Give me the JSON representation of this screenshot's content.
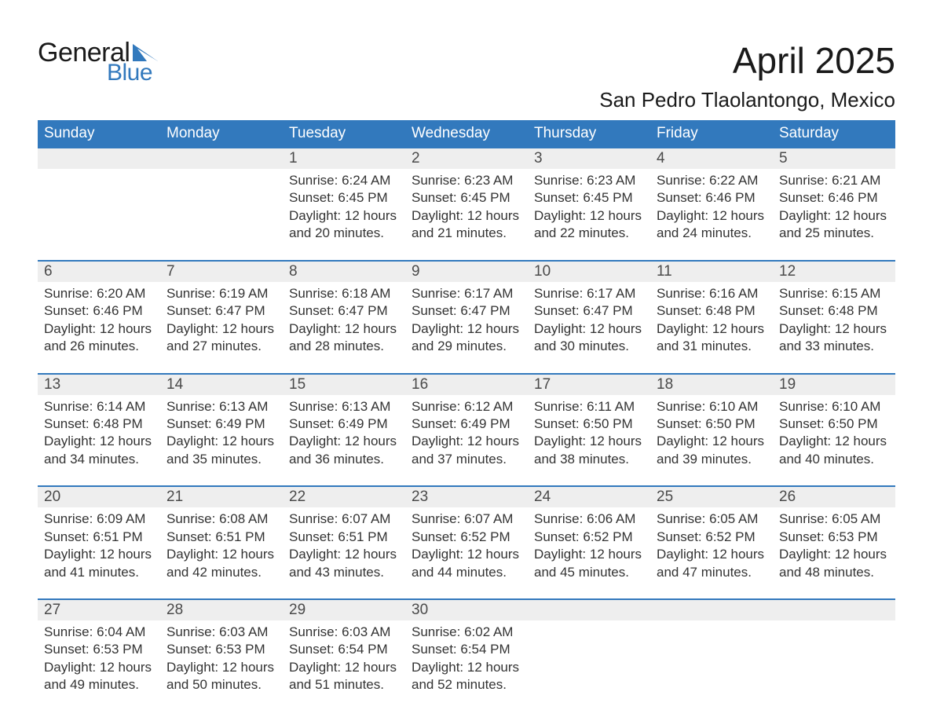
{
  "brand": {
    "general": "General",
    "blue": "Blue"
  },
  "title": "April 2025",
  "location": "San Pedro Tlaolantongo, Mexico",
  "colors": {
    "header_bg": "#3279bd",
    "header_text": "#ffffff",
    "daynum_bg": "#eeeeee",
    "daynum_border": "#3279bd",
    "body_text": "#333333",
    "logo_blue": "#3279bd",
    "page_bg": "#ffffff"
  },
  "fonts": {
    "title_size_pt": 34,
    "location_size_pt": 20,
    "header_size_pt": 14,
    "daynum_size_pt": 14,
    "body_size_pt": 13
  },
  "weekdays": [
    "Sunday",
    "Monday",
    "Tuesday",
    "Wednesday",
    "Thursday",
    "Friday",
    "Saturday"
  ],
  "weeks": [
    [
      null,
      null,
      {
        "n": "1",
        "sunrise": "Sunrise: 6:24 AM",
        "sunset": "Sunset: 6:45 PM",
        "day1": "Daylight: 12 hours",
        "day2": "and 20 minutes."
      },
      {
        "n": "2",
        "sunrise": "Sunrise: 6:23 AM",
        "sunset": "Sunset: 6:45 PM",
        "day1": "Daylight: 12 hours",
        "day2": "and 21 minutes."
      },
      {
        "n": "3",
        "sunrise": "Sunrise: 6:23 AM",
        "sunset": "Sunset: 6:45 PM",
        "day1": "Daylight: 12 hours",
        "day2": "and 22 minutes."
      },
      {
        "n": "4",
        "sunrise": "Sunrise: 6:22 AM",
        "sunset": "Sunset: 6:46 PM",
        "day1": "Daylight: 12 hours",
        "day2": "and 24 minutes."
      },
      {
        "n": "5",
        "sunrise": "Sunrise: 6:21 AM",
        "sunset": "Sunset: 6:46 PM",
        "day1": "Daylight: 12 hours",
        "day2": "and 25 minutes."
      }
    ],
    [
      {
        "n": "6",
        "sunrise": "Sunrise: 6:20 AM",
        "sunset": "Sunset: 6:46 PM",
        "day1": "Daylight: 12 hours",
        "day2": "and 26 minutes."
      },
      {
        "n": "7",
        "sunrise": "Sunrise: 6:19 AM",
        "sunset": "Sunset: 6:47 PM",
        "day1": "Daylight: 12 hours",
        "day2": "and 27 minutes."
      },
      {
        "n": "8",
        "sunrise": "Sunrise: 6:18 AM",
        "sunset": "Sunset: 6:47 PM",
        "day1": "Daylight: 12 hours",
        "day2": "and 28 minutes."
      },
      {
        "n": "9",
        "sunrise": "Sunrise: 6:17 AM",
        "sunset": "Sunset: 6:47 PM",
        "day1": "Daylight: 12 hours",
        "day2": "and 29 minutes."
      },
      {
        "n": "10",
        "sunrise": "Sunrise: 6:17 AM",
        "sunset": "Sunset: 6:47 PM",
        "day1": "Daylight: 12 hours",
        "day2": "and 30 minutes."
      },
      {
        "n": "11",
        "sunrise": "Sunrise: 6:16 AM",
        "sunset": "Sunset: 6:48 PM",
        "day1": "Daylight: 12 hours",
        "day2": "and 31 minutes."
      },
      {
        "n": "12",
        "sunrise": "Sunrise: 6:15 AM",
        "sunset": "Sunset: 6:48 PM",
        "day1": "Daylight: 12 hours",
        "day2": "and 33 minutes."
      }
    ],
    [
      {
        "n": "13",
        "sunrise": "Sunrise: 6:14 AM",
        "sunset": "Sunset: 6:48 PM",
        "day1": "Daylight: 12 hours",
        "day2": "and 34 minutes."
      },
      {
        "n": "14",
        "sunrise": "Sunrise: 6:13 AM",
        "sunset": "Sunset: 6:49 PM",
        "day1": "Daylight: 12 hours",
        "day2": "and 35 minutes."
      },
      {
        "n": "15",
        "sunrise": "Sunrise: 6:13 AM",
        "sunset": "Sunset: 6:49 PM",
        "day1": "Daylight: 12 hours",
        "day2": "and 36 minutes."
      },
      {
        "n": "16",
        "sunrise": "Sunrise: 6:12 AM",
        "sunset": "Sunset: 6:49 PM",
        "day1": "Daylight: 12 hours",
        "day2": "and 37 minutes."
      },
      {
        "n": "17",
        "sunrise": "Sunrise: 6:11 AM",
        "sunset": "Sunset: 6:50 PM",
        "day1": "Daylight: 12 hours",
        "day2": "and 38 minutes."
      },
      {
        "n": "18",
        "sunrise": "Sunrise: 6:10 AM",
        "sunset": "Sunset: 6:50 PM",
        "day1": "Daylight: 12 hours",
        "day2": "and 39 minutes."
      },
      {
        "n": "19",
        "sunrise": "Sunrise: 6:10 AM",
        "sunset": "Sunset: 6:50 PM",
        "day1": "Daylight: 12 hours",
        "day2": "and 40 minutes."
      }
    ],
    [
      {
        "n": "20",
        "sunrise": "Sunrise: 6:09 AM",
        "sunset": "Sunset: 6:51 PM",
        "day1": "Daylight: 12 hours",
        "day2": "and 41 minutes."
      },
      {
        "n": "21",
        "sunrise": "Sunrise: 6:08 AM",
        "sunset": "Sunset: 6:51 PM",
        "day1": "Daylight: 12 hours",
        "day2": "and 42 minutes."
      },
      {
        "n": "22",
        "sunrise": "Sunrise: 6:07 AM",
        "sunset": "Sunset: 6:51 PM",
        "day1": "Daylight: 12 hours",
        "day2": "and 43 minutes."
      },
      {
        "n": "23",
        "sunrise": "Sunrise: 6:07 AM",
        "sunset": "Sunset: 6:52 PM",
        "day1": "Daylight: 12 hours",
        "day2": "and 44 minutes."
      },
      {
        "n": "24",
        "sunrise": "Sunrise: 6:06 AM",
        "sunset": "Sunset: 6:52 PM",
        "day1": "Daylight: 12 hours",
        "day2": "and 45 minutes."
      },
      {
        "n": "25",
        "sunrise": "Sunrise: 6:05 AM",
        "sunset": "Sunset: 6:52 PM",
        "day1": "Daylight: 12 hours",
        "day2": "and 47 minutes."
      },
      {
        "n": "26",
        "sunrise": "Sunrise: 6:05 AM",
        "sunset": "Sunset: 6:53 PM",
        "day1": "Daylight: 12 hours",
        "day2": "and 48 minutes."
      }
    ],
    [
      {
        "n": "27",
        "sunrise": "Sunrise: 6:04 AM",
        "sunset": "Sunset: 6:53 PM",
        "day1": "Daylight: 12 hours",
        "day2": "and 49 minutes."
      },
      {
        "n": "28",
        "sunrise": "Sunrise: 6:03 AM",
        "sunset": "Sunset: 6:53 PM",
        "day1": "Daylight: 12 hours",
        "day2": "and 50 minutes."
      },
      {
        "n": "29",
        "sunrise": "Sunrise: 6:03 AM",
        "sunset": "Sunset: 6:54 PM",
        "day1": "Daylight: 12 hours",
        "day2": "and 51 minutes."
      },
      {
        "n": "30",
        "sunrise": "Sunrise: 6:02 AM",
        "sunset": "Sunset: 6:54 PM",
        "day1": "Daylight: 12 hours",
        "day2": "and 52 minutes."
      },
      null,
      null,
      null
    ]
  ]
}
